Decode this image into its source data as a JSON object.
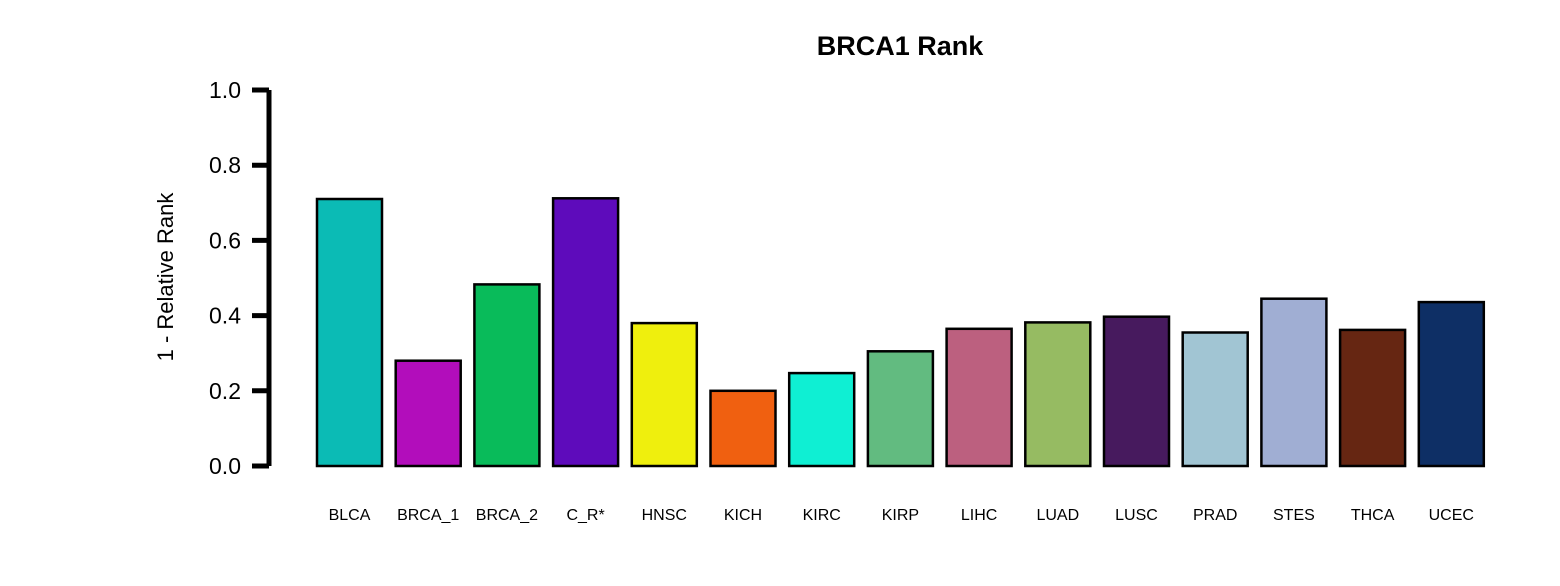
{
  "chart_data": {
    "type": "bar",
    "title": "BRCA1 Rank",
    "xlabel": "",
    "ylabel": "1 - Relative Rank",
    "ylim": [
      0,
      1
    ],
    "yticks": [
      "0.0",
      "0.2",
      "0.4",
      "0.6",
      "0.8",
      "1.0"
    ],
    "ytick_values": [
      0,
      0.2,
      0.4,
      0.6,
      0.8,
      1.0
    ],
    "grid": false,
    "legend": "none",
    "categories": [
      "BLCA",
      "BRCA_1",
      "BRCA_2",
      "C_R*",
      "HNSC",
      "KICH",
      "KIRC",
      "KIRP",
      "LIHC",
      "LUAD",
      "LUSC",
      "PRAD",
      "STES",
      "THCA",
      "UCEC"
    ],
    "values": [
      0.71,
      0.28,
      0.483,
      0.712,
      0.38,
      0.2,
      0.247,
      0.305,
      0.365,
      0.382,
      0.397,
      0.355,
      0.445,
      0.362,
      0.436
    ],
    "colors": [
      "#0BBBB5",
      "#B20DBB",
      "#09BB5A",
      "#5E0BBB",
      "#EFEF0D",
      "#F06010",
      "#0FEFD3",
      "#62BB80",
      "#BC607F",
      "#96BB62",
      "#471A5E",
      "#A1C5D3",
      "#A0AED3",
      "#662612",
      "#0E2F65"
    ],
    "bar_edge_color": "#000000"
  }
}
